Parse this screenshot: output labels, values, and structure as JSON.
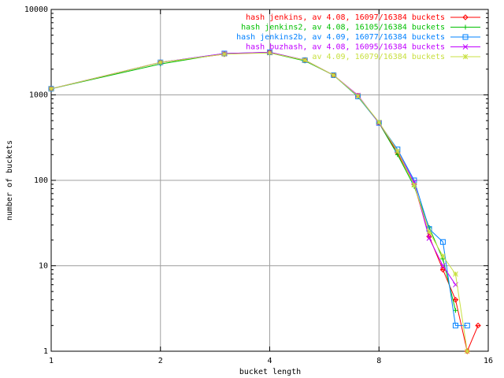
{
  "chart_data": {
    "type": "line",
    "xlabel": "bucket length",
    "ylabel": "number of buckets",
    "x": [
      1,
      2,
      3,
      4,
      5,
      6,
      7,
      8,
      9,
      10,
      11,
      12,
      13,
      14,
      15
    ],
    "xlim": [
      1,
      16
    ],
    "xticks": [
      1,
      2,
      4,
      8,
      16
    ],
    "xlog": true,
    "ylim": [
      1,
      10000
    ],
    "yticks": [
      1,
      10,
      100,
      1000,
      10000
    ],
    "ylog": true,
    "grid": true,
    "legend": "top-right",
    "series": [
      {
        "name": "hash jenkins, av 4.08, 16097/16384 buckets",
        "color": "#ff0000",
        "marker": "diamond",
        "values": [
          1180,
          2400,
          3000,
          3150,
          2550,
          1700,
          980,
          470,
          210,
          90,
          22,
          9,
          4,
          1,
          2
        ]
      },
      {
        "name": "hash jenkins2, av 4.08, 16105/16384 buckets",
        "color": "#00c000",
        "marker": "plus",
        "values": [
          1180,
          2300,
          3050,
          3100,
          2500,
          1700,
          950,
          470,
          200,
          85,
          28,
          12,
          3,
          null,
          null
        ]
      },
      {
        "name": "hash jenkins2b, av 4.09, 16077/16384 buckets",
        "color": "#0080ff",
        "marker": "square",
        "values": [
          1180,
          2400,
          3050,
          3150,
          2550,
          1700,
          960,
          470,
          230,
          100,
          27,
          19,
          2,
          2,
          null
        ]
      },
      {
        "name": "hash buzhash, av 4.08, 16095/16384 buckets",
        "color": "#c000ff",
        "marker": "cross",
        "values": [
          1180,
          2400,
          3050,
          3150,
          2550,
          1700,
          990,
          470,
          220,
          95,
          21,
          10,
          6,
          null,
          null
        ]
      },
      {
        "name": "av 4.09, 16079/16384 buckets",
        "color": "#c8e040",
        "marker": "star",
        "values": [
          1180,
          2400,
          3000,
          3100,
          2550,
          1700,
          970,
          480,
          220,
          88,
          25,
          13,
          8,
          1,
          null
        ]
      }
    ]
  }
}
